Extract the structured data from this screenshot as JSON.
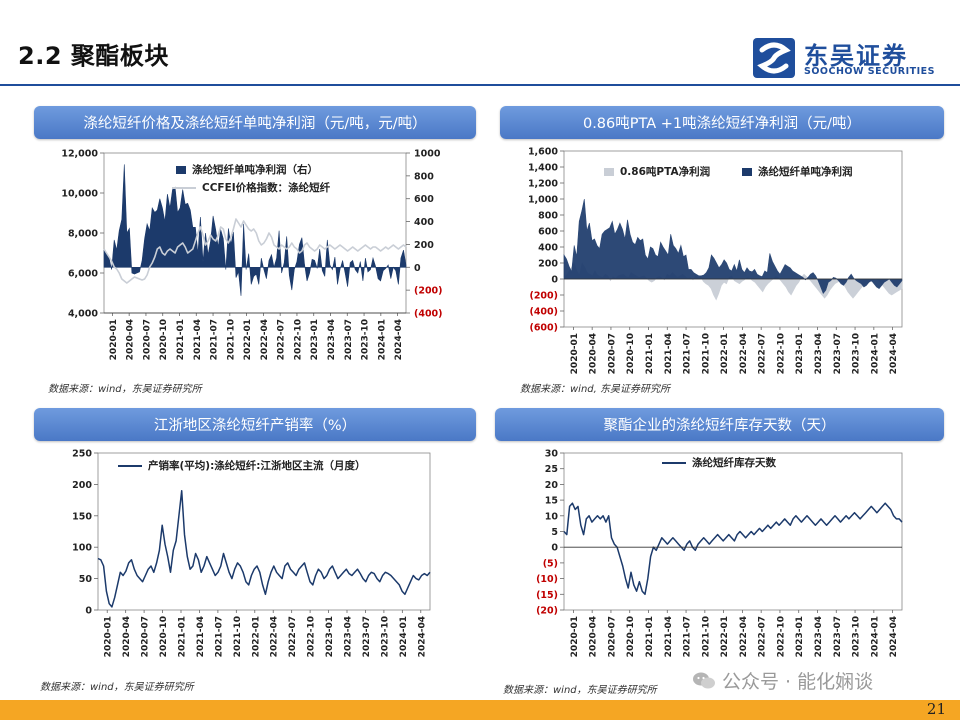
{
  "page": {
    "title": "2.2 聚酯板块",
    "logo_cn": "东吴证券",
    "logo_en": "SOOCHOW SECURITIES",
    "page_number": "21",
    "watermark": "公众号 · 能化娴谈",
    "colors": {
      "accent": "#1f4e9c",
      "header_bg": "#5a86d2",
      "bottom_bar": "#f5a623",
      "series_dark": "#1c3a6b",
      "series_light": "#c9ced6",
      "negative_tick": "#c00000"
    }
  },
  "panels": [
    {
      "header": "涤纶短纤价格及涤纶短纤单吨净利润（元/吨，元/吨）",
      "source": "数据来源：wind，东吴证券研究所"
    },
    {
      "header": "0.86吨PTA +1吨涤纶短纤净利润（元/吨）",
      "source": "数据来源：wind, 东吴证券研究所"
    },
    {
      "header": "江浙地区涤纶短纤产销率（%）",
      "source": "数据来源：wind，东吴证券研究所"
    },
    {
      "header": "聚酯企业的涤纶短纤库存天数（天）",
      "source": "数据来源：wind，东吴证券研究所"
    }
  ],
  "chart_data": [
    {
      "type": "area",
      "title": "涤纶短纤价格及涤纶短纤单吨净利润（元/吨，元/吨）",
      "x_ticks": [
        "2020-01",
        "2020-04",
        "2020-07",
        "2020-10",
        "2021-01",
        "2021-04",
        "2021-07",
        "2021-10",
        "2022-01",
        "2022-04",
        "2022-07",
        "2022-10",
        "2023-01",
        "2023-04",
        "2023-07",
        "2023-10",
        "2024-01",
        "2024-04"
      ],
      "y_left": {
        "ticks": [
          "12,000",
          "10,000",
          "8,000",
          "6,000",
          "4,000"
        ],
        "range": [
          4000,
          12000
        ]
      },
      "y_right": {
        "ticks": [
          "1000",
          "800",
          "600",
          "400",
          "200",
          "0",
          "(200)",
          "(400)"
        ],
        "range": [
          -400,
          1000
        ],
        "negative_ticks": [
          "(200)",
          "(400)"
        ]
      },
      "series": [
        {
          "name": "涤纶短纤单吨净利润（右）",
          "axis": "right",
          "kind": "area",
          "values": [
            150,
            120,
            80,
            -20,
            240,
            150,
            320,
            420,
            900,
            300,
            340,
            -50,
            -60,
            -50,
            -40,
            60,
            250,
            380,
            320,
            520,
            480,
            500,
            600,
            520,
            400,
            640,
            520,
            680,
            700,
            480,
            520,
            680,
            550,
            560,
            500,
            350,
            350,
            120,
            440,
            50,
            300,
            110,
            230,
            450,
            330,
            180,
            330,
            250,
            -20,
            340,
            200,
            310,
            -90,
            -40,
            -250,
            380,
            -20,
            120,
            -150,
            -80,
            -60,
            -150,
            80,
            -20,
            -100,
            60,
            110,
            0,
            80,
            320,
            -50,
            40,
            270,
            -70,
            -200,
            -20,
            50,
            200,
            260,
            30,
            -120,
            -50,
            70,
            60,
            -10,
            160,
            -30,
            -80,
            240,
            20,
            -20,
            90,
            -150,
            -20,
            60,
            -50,
            -170,
            40,
            60,
            -20,
            -50,
            50,
            -120,
            80,
            -40,
            -20,
            80,
            10,
            -100,
            -120,
            -30,
            -10,
            20,
            -100,
            0,
            -30,
            -150,
            80,
            150,
            20
          ]
        },
        {
          "name": "CCFEI价格指数：涤纶短纤",
          "axis": "left",
          "kind": "line",
          "values": [
            7200,
            7000,
            6800,
            6600,
            6300,
            6200,
            6000,
            5700,
            5600,
            5500,
            5600,
            5700,
            5800,
            5750,
            5700,
            5650,
            5700,
            5900,
            6300,
            6500,
            6800,
            7200,
            7300,
            7000,
            6900,
            7100,
            7200,
            7100,
            7000,
            7300,
            7400,
            7500,
            7300,
            7000,
            7100,
            7200,
            7600,
            8000,
            8300,
            7900,
            7400,
            7600,
            7900,
            7700,
            7600,
            7900,
            8300,
            8200,
            7700,
            7500,
            7800,
            8200,
            8700,
            8500,
            8300,
            8600,
            8400,
            8200,
            8100,
            8200,
            8000,
            7600,
            7400,
            7500,
            7700,
            8000,
            7800,
            7400,
            7300,
            7200,
            7400,
            7300,
            7200,
            7300,
            7500,
            7300,
            7200,
            7000,
            7100,
            7400,
            7500,
            7300,
            7200,
            7100,
            7200,
            7400,
            7300,
            7200,
            7300,
            7400,
            7300,
            7200,
            7300,
            7400,
            7300,
            7200,
            7100,
            7200,
            7300,
            7200,
            7100,
            7200,
            7300,
            7400,
            7300,
            7200,
            7300,
            7300,
            7200,
            7100,
            7200,
            7300,
            7200,
            7300,
            7400,
            7300,
            7200,
            7300,
            7400,
            7300
          ]
        }
      ]
    },
    {
      "type": "area",
      "title": "0.86吨PTA +1吨涤纶短纤净利润（元/吨）",
      "x_ticks": [
        "2020-01",
        "2020-04",
        "2020-07",
        "2020-10",
        "2021-01",
        "2021-04",
        "2021-07",
        "2021-10",
        "2022-01",
        "2022-04",
        "2022-07",
        "2022-10",
        "2023-01",
        "2023-04",
        "2023-07",
        "2023-10",
        "2024-01",
        "2024-04"
      ],
      "y": {
        "ticks": [
          "1,600",
          "1,400",
          "1,200",
          "1,000",
          "800",
          "600",
          "400",
          "200",
          "0",
          "(200)",
          "(400)",
          "(600)"
        ],
        "range": [
          -600,
          1600
        ],
        "negative_ticks": [
          "(200)",
          "(400)",
          "(600)"
        ]
      },
      "series": [
        {
          "name": "0.86吨PTA净利润",
          "kind": "area",
          "values": [
            20,
            50,
            100,
            150,
            200,
            100,
            50,
            200,
            150,
            80,
            60,
            40,
            100,
            50,
            30,
            20,
            60,
            40,
            -20,
            30,
            10,
            40,
            50,
            60,
            30,
            20,
            80,
            60,
            40,
            20,
            30,
            40,
            10,
            -20,
            -40,
            -20,
            20,
            30,
            10,
            -10,
            60,
            40,
            80,
            50,
            20,
            40,
            60,
            30,
            10,
            20,
            -10,
            40,
            20,
            30,
            -30,
            -60,
            -80,
            -120,
            -200,
            -260,
            -180,
            -80,
            -40,
            -60,
            20,
            40,
            -20,
            -40,
            -60,
            -30,
            -10,
            20,
            10,
            -20,
            -40,
            -80,
            -120,
            -160,
            -100,
            -60,
            -30,
            0,
            30,
            20,
            -20,
            -60,
            -100,
            -160,
            -200,
            -140,
            -80,
            -40,
            20,
            60,
            30,
            0,
            -40,
            -80,
            -120,
            -160,
            -200,
            -240,
            -200,
            -140,
            -100,
            -60,
            -40,
            -20,
            -60,
            -100,
            -160,
            -200,
            -240,
            -200,
            -160,
            -120,
            -80,
            -60,
            -40,
            -20,
            -10,
            0,
            -20,
            -60,
            -100,
            -140,
            -180,
            -200,
            -180,
            -160,
            -140,
            -120
          ]
        },
        {
          "name": "涤纶短纤单吨净利润",
          "kind": "area",
          "values": [
            300,
            250,
            160,
            90,
            420,
            280,
            720,
            850,
            1000,
            600,
            700,
            480,
            500,
            420,
            380,
            560,
            600,
            620,
            640,
            720,
            560,
            620,
            700,
            620,
            500,
            740,
            560,
            460,
            430,
            520,
            480,
            500,
            300,
            250,
            400,
            380,
            300,
            280,
            460,
            400,
            350,
            300,
            560,
            420,
            380,
            320,
            420,
            280,
            300,
            120,
            120,
            80,
            60,
            40,
            40,
            50,
            80,
            140,
            300,
            260,
            200,
            140,
            180,
            240,
            200,
            120,
            100,
            180,
            100,
            240,
            120,
            80,
            140,
            100,
            90,
            120,
            60,
            40,
            30,
            100,
            80,
            320,
            220,
            160,
            100,
            60,
            120,
            180,
            160,
            140,
            100,
            80,
            60,
            40,
            20,
            -10,
            20,
            60,
            80,
            40,
            -20,
            -100,
            -180,
            -140,
            -40,
            -20,
            20,
            10,
            -20,
            -60,
            -80,
            -40,
            20,
            60,
            10,
            -20,
            -40,
            -60,
            -100,
            -80,
            -40,
            -20,
            -60,
            -100,
            -120,
            -80,
            -40,
            -20,
            0,
            -40,
            -80,
            -100,
            -60,
            -20
          ]
        }
      ]
    },
    {
      "type": "line",
      "title": "江浙地区涤纶短纤产销率（%）",
      "x_ticks": [
        "2020-01",
        "2020-04",
        "2020-07",
        "2020-10",
        "2021-01",
        "2021-04",
        "2021-07",
        "2021-10",
        "2022-01",
        "2022-04",
        "2022-07",
        "2022-10",
        "2023-01",
        "2023-04",
        "2023-07",
        "2023-10",
        "2024-01",
        "2024-04"
      ],
      "y": {
        "ticks": [
          "250",
          "200",
          "150",
          "100",
          "50",
          "0"
        ],
        "range": [
          0,
          250
        ]
      },
      "series": [
        {
          "name": "产销率(平均):涤纶短纤:江浙地区主流（月度）",
          "values": [
            82,
            80,
            70,
            30,
            10,
            5,
            20,
            40,
            60,
            55,
            62,
            75,
            80,
            65,
            55,
            50,
            45,
            55,
            65,
            70,
            60,
            75,
            95,
            135,
            105,
            85,
            60,
            95,
            110,
            150,
            190,
            120,
            85,
            65,
            70,
            90,
            80,
            60,
            70,
            85,
            75,
            65,
            55,
            60,
            70,
            90,
            75,
            60,
            50,
            65,
            75,
            70,
            60,
            45,
            40,
            55,
            65,
            70,
            60,
            40,
            25,
            45,
            60,
            70,
            60,
            55,
            50,
            70,
            75,
            65,
            60,
            55,
            65,
            70,
            75,
            60,
            45,
            40,
            55,
            65,
            60,
            50,
            55,
            65,
            70,
            60,
            50,
            55,
            60,
            65,
            58,
            55,
            60,
            65,
            58,
            50,
            45,
            55,
            60,
            58,
            50,
            45,
            55,
            60,
            58,
            55,
            50,
            45,
            40,
            30,
            25,
            35,
            45,
            55,
            50,
            48,
            55,
            58,
            55,
            60
          ]
        }
      ]
    },
    {
      "type": "line",
      "title": "聚酯企业的涤纶短纤库存天数（天）",
      "x_ticks": [
        "2020-01",
        "2020-04",
        "2020-07",
        "2020-10",
        "2021-01",
        "2021-04",
        "2021-07",
        "2021-10",
        "2022-01",
        "2022-04",
        "2022-07",
        "2022-10",
        "2023-01",
        "2023-04",
        "2023-07",
        "2023-10",
        "2024-01",
        "2024-04"
      ],
      "y": {
        "ticks": [
          "30",
          "25",
          "20",
          "15",
          "10",
          "5",
          "0",
          "(5)",
          "(10)",
          "(15)",
          "(20)"
        ],
        "range": [
          -20,
          30
        ],
        "negative_ticks": [
          "(5)",
          "(10)",
          "(15)",
          "(20)"
        ]
      },
      "series": [
        {
          "name": "涤纶短纤库存天数",
          "values": [
            5,
            4,
            13,
            14,
            12,
            13,
            7,
            4,
            9,
            10,
            8,
            9,
            10,
            9,
            10,
            8,
            10,
            3,
            1,
            0,
            -3,
            -6,
            -10,
            -13,
            -8,
            -12,
            -14,
            -11,
            -14,
            -15,
            -10,
            -3,
            0,
            -1,
            1,
            3,
            2,
            1,
            2,
            3,
            2,
            1,
            0,
            -1,
            1,
            2,
            0,
            -1,
            1,
            2,
            3,
            2,
            1,
            2,
            3,
            4,
            3,
            2,
            3,
            4,
            3,
            2,
            4,
            5,
            4,
            3,
            4,
            5,
            4,
            5,
            6,
            5,
            6,
            7,
            6,
            7,
            8,
            7,
            8,
            9,
            8,
            7,
            9,
            10,
            9,
            8,
            9,
            10,
            9,
            8,
            7,
            8,
            9,
            8,
            7,
            8,
            9,
            10,
            9,
            8,
            9,
            10,
            9,
            10,
            11,
            10,
            9,
            10,
            11,
            12,
            13,
            12,
            11,
            12,
            13,
            14,
            13,
            12,
            10,
            9,
            9,
            8
          ]
        }
      ]
    }
  ]
}
